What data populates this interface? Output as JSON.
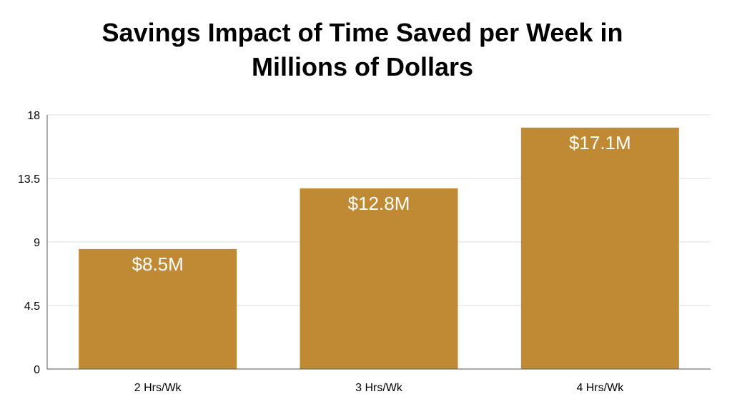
{
  "chart_data": {
    "type": "bar",
    "title": "Savings Impact of Time Saved per Week in Millions of Dollars",
    "title_lines": [
      "Savings Impact of Time Saved per Week in",
      "Millions of Dollars"
    ],
    "categories": [
      "2 Hrs/Wk",
      "3 Hrs/Wk",
      "4 Hrs/Wk"
    ],
    "values": [
      8.5,
      12.8,
      17.1
    ],
    "data_labels": [
      "$8.5M",
      "$12.8M",
      "$17.1M"
    ],
    "xlabel": "",
    "ylabel": "",
    "ylim": [
      0,
      18
    ],
    "yticks": [
      0,
      4.5,
      9,
      13.5,
      18
    ],
    "ytick_labels": [
      "0",
      "4.5",
      "9",
      "13.5",
      "18"
    ],
    "grid": true,
    "legend": "none",
    "bar_color": "#BF8A33"
  }
}
